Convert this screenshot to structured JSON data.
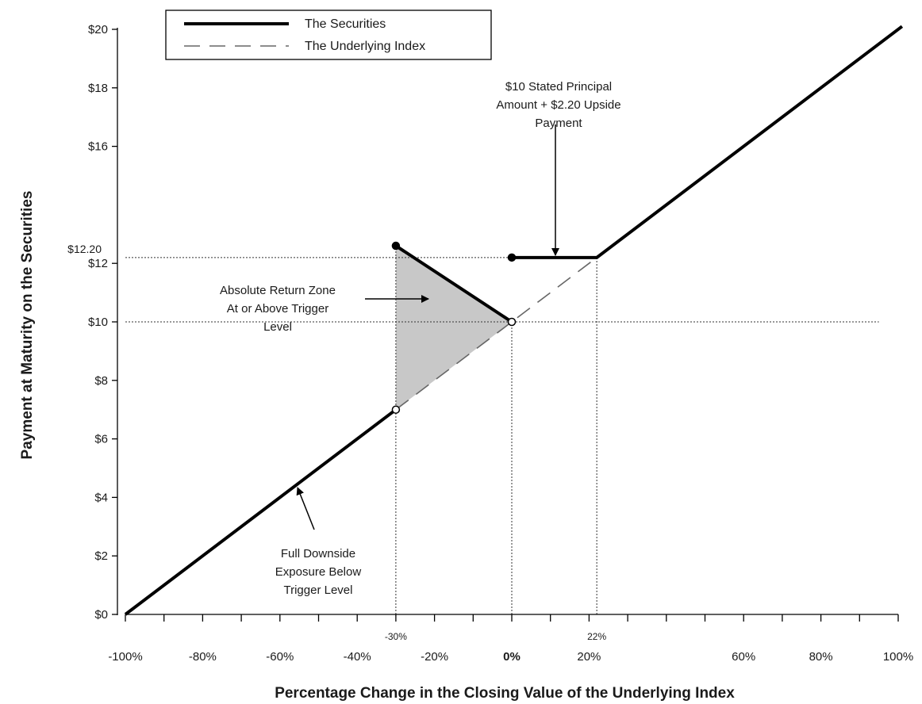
{
  "chart_data": {
    "type": "line",
    "xlabel": "Percentage Change in the Closing Value of the Underlying Index",
    "ylabel": "Payment at Maturity on the Securities",
    "xlim": [
      -100,
      100
    ],
    "ylim": [
      0,
      20
    ],
    "x_ticks": [
      {
        "value": -100,
        "label": "-100%"
      },
      {
        "value": -80,
        "label": "-80%"
      },
      {
        "value": -60,
        "label": "-60%"
      },
      {
        "value": -40,
        "label": "-40%"
      },
      {
        "value": -20,
        "label": "-20%"
      },
      {
        "value": 0,
        "label": "0%",
        "bold": true
      },
      {
        "value": 20,
        "label": "20%"
      },
      {
        "value": 60,
        "label": "60%"
      },
      {
        "value": 80,
        "label": "80%"
      },
      {
        "value": 100,
        "label": "100%"
      }
    ],
    "x_minor_ticks": [
      -90,
      -70,
      -50,
      -30,
      -10,
      10,
      30,
      40,
      50,
      70,
      90
    ],
    "x_extra_labels": [
      {
        "value": -30,
        "label": "-30%"
      },
      {
        "value": 22,
        "label": "22%"
      }
    ],
    "y_ticks": [
      {
        "value": 0,
        "label": "$0"
      },
      {
        "value": 2,
        "label": "$2"
      },
      {
        "value": 4,
        "label": "$4"
      },
      {
        "value": 6,
        "label": "$6"
      },
      {
        "value": 8,
        "label": "$8"
      },
      {
        "value": 10,
        "label": "$10"
      },
      {
        "value": 12,
        "label": "$12"
      },
      {
        "value": 16,
        "label": "$16"
      },
      {
        "value": 18,
        "label": "$18"
      },
      {
        "value": 20,
        "label": "$20"
      }
    ],
    "y_extra_labels": [
      {
        "value": 12.2,
        "label": "$12.20"
      }
    ],
    "legend": {
      "placement": "top-left",
      "entries": [
        "The Securities",
        "The Underlying Index"
      ]
    },
    "series": [
      {
        "name": "The Securities",
        "style": "solid",
        "color": "#000000",
        "segments": [
          [
            [
              -100,
              0
            ],
            [
              -30,
              7
            ]
          ],
          [
            [
              -30,
              12.6
            ],
            [
              0,
              10
            ]
          ],
          [
            [
              0,
              12.2
            ],
            [
              22,
              12.2
            ],
            [
              101,
              20.1
            ]
          ]
        ]
      },
      {
        "name": "The Underlying Index",
        "style": "dashed",
        "color": "#666666",
        "segments": [
          [
            [
              -30,
              7
            ],
            [
              22,
              12.2
            ]
          ]
        ]
      }
    ],
    "markers": [
      {
        "x": -30,
        "y": 7,
        "fill": "open"
      },
      {
        "x": 0,
        "y": 10,
        "fill": "open"
      },
      {
        "x": -30,
        "y": 12.6,
        "fill": "filled"
      },
      {
        "x": 0,
        "y": 12.2,
        "fill": "filled"
      }
    ],
    "shaded_region": {
      "points": [
        [
          -30,
          12.6
        ],
        [
          0,
          10
        ],
        [
          -30,
          7
        ]
      ],
      "color": "#c8c8c8"
    },
    "reference_lines": {
      "horizontal": [
        {
          "y": 12.2,
          "from_x": -100,
          "to_x": 22
        },
        {
          "y": 10,
          "from_x": -100,
          "to_x": 95
        }
      ],
      "vertical": [
        {
          "x": -30,
          "from_y": 0,
          "to_y": 12.6
        },
        {
          "x": 0,
          "from_y": 0,
          "to_y": 10
        },
        {
          "x": 22,
          "from_y": 0,
          "to_y": 12.2
        }
      ]
    },
    "annotations": [
      {
        "name": "annotation-upside-payment",
        "lines": [
          "$10 Stated Principal",
          "Amount + $2.20 Upside",
          "Payment"
        ]
      },
      {
        "name": "annotation-absolute-return-zone",
        "lines": [
          "Absolute Return Zone",
          "At or Above Trigger",
          "Level"
        ]
      },
      {
        "name": "annotation-full-downside",
        "lines": [
          "Full Downside",
          "Exposure Below",
          "Trigger Level"
        ]
      }
    ]
  }
}
